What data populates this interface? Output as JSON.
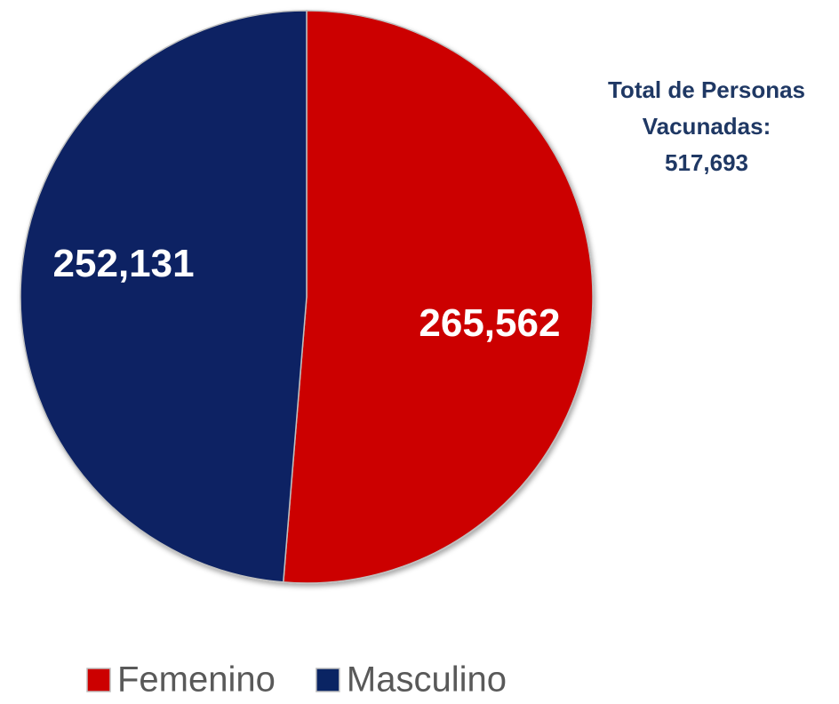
{
  "chart_data": {
    "type": "pie",
    "categories": [
      "Femenino",
      "Masculino"
    ],
    "values": [
      265562,
      252131
    ],
    "value_labels": [
      "265,562",
      "252,131"
    ],
    "colors": [
      "#cc0000",
      "#0a2463"
    ],
    "annotation": [
      "Total de Personas",
      "Vacunadas:",
      "517,693"
    ],
    "legend": "bottom"
  }
}
